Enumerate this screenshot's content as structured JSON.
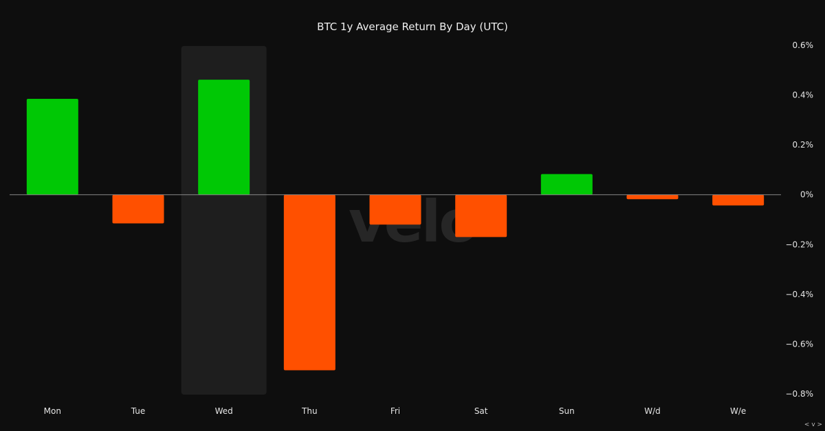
{
  "chart_data": {
    "type": "bar",
    "title": "BTC 1y Average Return By Day (UTC)",
    "categories": [
      "Mon",
      "Tue",
      "Wed",
      "Thu",
      "Fri",
      "Sat",
      "Sun",
      "W/d",
      "W/e"
    ],
    "values": [
      0.385,
      -0.115,
      0.462,
      -0.705,
      -0.12,
      -0.17,
      0.083,
      -0.018,
      -0.043
    ],
    "unit": "%",
    "ylim": [
      -0.8,
      0.6
    ],
    "yticks": [
      0.6,
      0.4,
      0.2,
      0,
      -0.2,
      -0.4,
      -0.6,
      -0.8
    ],
    "ytick_labels": [
      "0.6%",
      "0.4%",
      "0.2%",
      "0%",
      "−0.2%",
      "−0.4%",
      "−0.6%",
      "−0.8%"
    ],
    "highlighted_category": "Wed",
    "y_axis_position": "right",
    "grid": false,
    "colors": {
      "positive": "#00c805",
      "negative": "#ff5000",
      "highlight_band": "#1e1e1e",
      "zero_line": "#8a8a8a",
      "background": "#0e0e0e"
    }
  },
  "watermark": "velo",
  "corner_control": "< v >"
}
